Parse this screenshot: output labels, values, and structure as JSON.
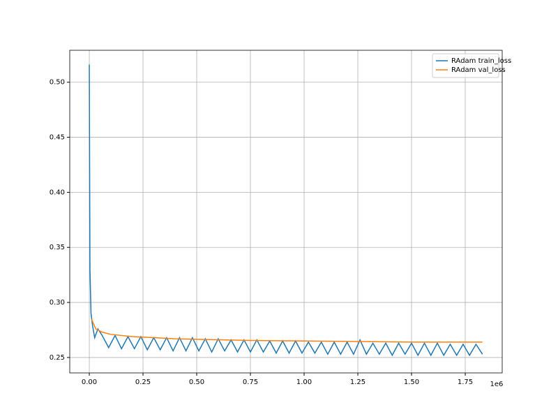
{
  "chart_data": {
    "type": "line",
    "x_offset_label": "1e6",
    "xlim": [
      -91000,
      1922000
    ],
    "ylim": [
      0.236,
      0.529
    ],
    "xticks": [
      {
        "value": 0,
        "label": "0.00"
      },
      {
        "value": 250000,
        "label": "0.25"
      },
      {
        "value": 500000,
        "label": "0.50"
      },
      {
        "value": 750000,
        "label": "0.75"
      },
      {
        "value": 1000000,
        "label": "1.00"
      },
      {
        "value": 1250000,
        "label": "1.25"
      },
      {
        "value": 1500000,
        "label": "1.50"
      },
      {
        "value": 1750000,
        "label": "1.75"
      }
    ],
    "yticks": [
      {
        "value": 0.25,
        "label": "0.25"
      },
      {
        "value": 0.3,
        "label": "0.30"
      },
      {
        "value": 0.35,
        "label": "0.35"
      },
      {
        "value": 0.4,
        "label": "0.40"
      },
      {
        "value": 0.45,
        "label": "0.45"
      },
      {
        "value": 0.5,
        "label": "0.50"
      }
    ],
    "grid": true,
    "legend": "upper right",
    "series": [
      {
        "name": "RAdam train_loss",
        "color": "#1f77b4",
        "x": [
          0,
          3000,
          8000,
          15000,
          25000,
          40000,
          60000,
          90000,
          120000,
          150000,
          180000,
          210000,
          240000,
          270000,
          300000,
          330000,
          360000,
          390000,
          420000,
          450000,
          480000,
          510000,
          540000,
          570000,
          600000,
          630000,
          660000,
          690000,
          720000,
          750000,
          780000,
          810000,
          840000,
          870000,
          900000,
          930000,
          960000,
          990000,
          1020000,
          1050000,
          1080000,
          1110000,
          1140000,
          1170000,
          1200000,
          1230000,
          1260000,
          1290000,
          1320000,
          1350000,
          1380000,
          1410000,
          1440000,
          1470000,
          1500000,
          1530000,
          1560000,
          1590000,
          1620000,
          1650000,
          1680000,
          1710000,
          1740000,
          1770000,
          1800000,
          1830000
        ],
        "values": [
          0.516,
          0.33,
          0.29,
          0.279,
          0.268,
          0.276,
          0.27,
          0.259,
          0.27,
          0.258,
          0.269,
          0.258,
          0.269,
          0.257,
          0.268,
          0.257,
          0.268,
          0.256,
          0.268,
          0.256,
          0.268,
          0.256,
          0.267,
          0.255,
          0.267,
          0.256,
          0.266,
          0.255,
          0.266,
          0.255,
          0.266,
          0.255,
          0.265,
          0.254,
          0.265,
          0.254,
          0.265,
          0.254,
          0.264,
          0.254,
          0.264,
          0.253,
          0.264,
          0.253,
          0.264,
          0.253,
          0.266,
          0.253,
          0.263,
          0.253,
          0.263,
          0.252,
          0.263,
          0.253,
          0.263,
          0.252,
          0.263,
          0.252,
          0.263,
          0.252,
          0.262,
          0.252,
          0.262,
          0.252,
          0.262,
          0.253
        ]
      },
      {
        "name": "RAdam val_loss",
        "color": "#ff7f0e",
        "x": [
          10000,
          30000,
          60000,
          100000,
          200000,
          300000,
          400000,
          500000,
          750000,
          1000000,
          1250000,
          1500000,
          1830000
        ],
        "values": [
          0.285,
          0.276,
          0.273,
          0.271,
          0.269,
          0.268,
          0.267,
          0.2665,
          0.2655,
          0.265,
          0.2645,
          0.264,
          0.264
        ]
      }
    ]
  }
}
